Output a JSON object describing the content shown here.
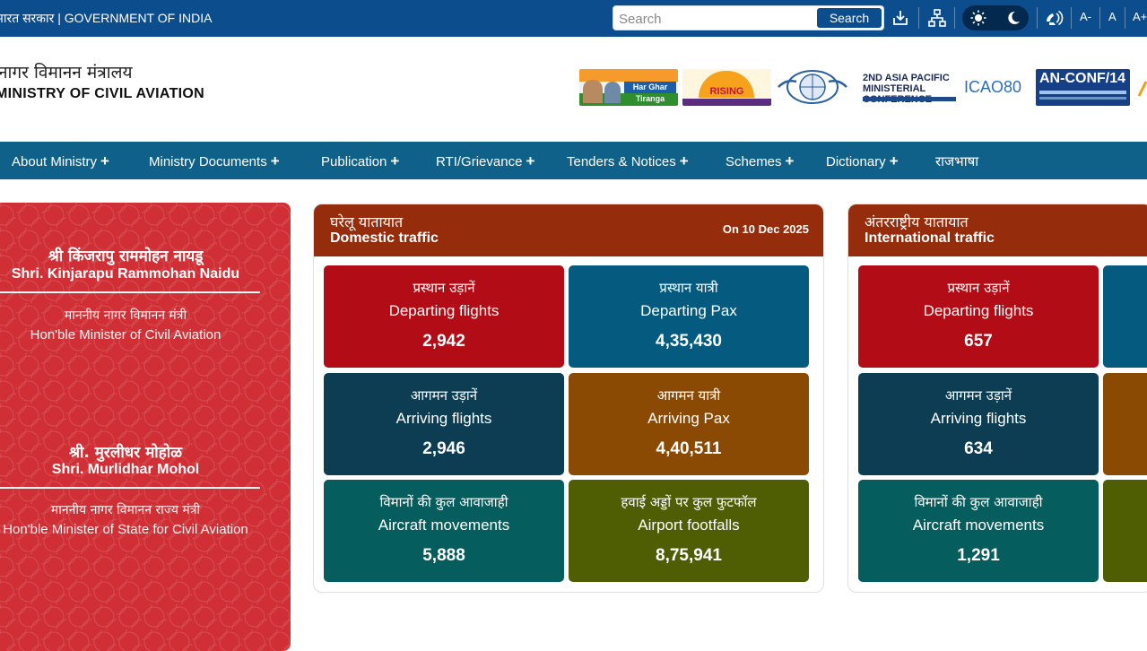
{
  "topbar": {
    "gov_label": "भारत सरकार | GOVERNMENT OF INDIA",
    "search_placeholder": "Search",
    "search_button": "Search",
    "font_small": "A-",
    "font_normal": "A",
    "font_large": "A+"
  },
  "header": {
    "title_hi": "नागर विमानन मंत्रालय",
    "title_en": "MINISTRY OF CIVIL AVIATION",
    "logos": [
      {
        "name": "har-ghar-tiranga-logo",
        "text": "Har Ghar Tiranga"
      },
      {
        "name": "rising-northeast-logo",
        "text": "RISING NORTHEAST"
      },
      {
        "name": "icao-emblem-logo",
        "text": "ICAO OACI"
      },
      {
        "name": "asia-pacific-conference-logo",
        "text": "2ND ASIA PACIFIC MINISTERIAL CONFERENCE"
      },
      {
        "name": "icao80-logo",
        "text": "ICAO80"
      },
      {
        "name": "an-conf-logo",
        "text": "AN-CONF/14"
      }
    ]
  },
  "nav": {
    "items": [
      {
        "label": "About Ministry",
        "plus": "+"
      },
      {
        "label": "Ministry Documents",
        "plus": "+"
      },
      {
        "label": "Publication",
        "plus": "+"
      },
      {
        "label": "RTI/Grievance",
        "plus": "+"
      },
      {
        "label": "Tenders & Notices",
        "plus": "+"
      },
      {
        "label": "Schemes",
        "plus": "+"
      },
      {
        "label": "Dictionary",
        "plus": "+"
      },
      {
        "label": "राजभाषा",
        "plus": ""
      }
    ]
  },
  "ministers": [
    {
      "name_hi": "श्री किंजरापु राममोहन नायडू",
      "name_en": "Shri. Kinjarapu Rammohan Naidu",
      "role_hi": "माननीय नागर विमानन मंत्री",
      "role_en": "Hon'ble Minister of Civil Aviation"
    },
    {
      "name_hi": "श्री. मुरलीधर मोहोळ",
      "name_en": "Shri. Murlidhar Mohol",
      "role_hi": "माननीय नागर विमानन राज्य मंत्री",
      "role_en": "Hon'ble Minister of State for Civil Aviation"
    }
  ],
  "domestic": {
    "title_hi": "घरेलू यातायात",
    "title_en": "Domestic traffic",
    "date": "On 10 Dec 2025",
    "tiles": [
      {
        "hi": "प्रस्थान उड़ानें",
        "en": "Departing flights",
        "value": "2,942",
        "color": "#b20d16"
      },
      {
        "hi": "प्रस्थान यात्री",
        "en": "Departing Pax",
        "value": "4,35,430",
        "color": "#045a7f"
      },
      {
        "hi": "आगमन उड़ानें",
        "en": "Arriving flights",
        "value": "2,946",
        "color": "#0c3d52"
      },
      {
        "hi": "आगमन यात्री",
        "en": "Arriving Pax",
        "value": "4,40,511",
        "color": "#8a4a04"
      },
      {
        "hi": "विमानों की कुल आवाजाही",
        "en": "Aircraft movements",
        "value": "5,888",
        "color": "#055d5e"
      },
      {
        "hi": "हवाई अड्डों पर कुल फुटफॉल",
        "en": "Airport footfalls",
        "value": "8,75,941",
        "color": "#4f5e03"
      }
    ]
  },
  "international": {
    "title_hi": "अंतरराष्ट्रीय यातायात",
    "title_en": "International traffic",
    "tiles": [
      {
        "hi": "प्रस्थान उड़ानें",
        "en": "Departing flights",
        "value": "657",
        "color": "#b20d16"
      },
      {
        "hi": "",
        "en": "",
        "value": "",
        "color": "#045a7f"
      },
      {
        "hi": "आगमन उड़ानें",
        "en": "Arriving flights",
        "value": "634",
        "color": "#0c3d52"
      },
      {
        "hi": "",
        "en": "",
        "value": "",
        "color": "#8a4a04"
      },
      {
        "hi": "विमानों की कुल आवाजाही",
        "en": "Aircraft movements",
        "value": "1,291",
        "color": "#055d5e"
      },
      {
        "hi": "",
        "en": "",
        "value": "",
        "color": "#4f5e03"
      }
    ]
  }
}
